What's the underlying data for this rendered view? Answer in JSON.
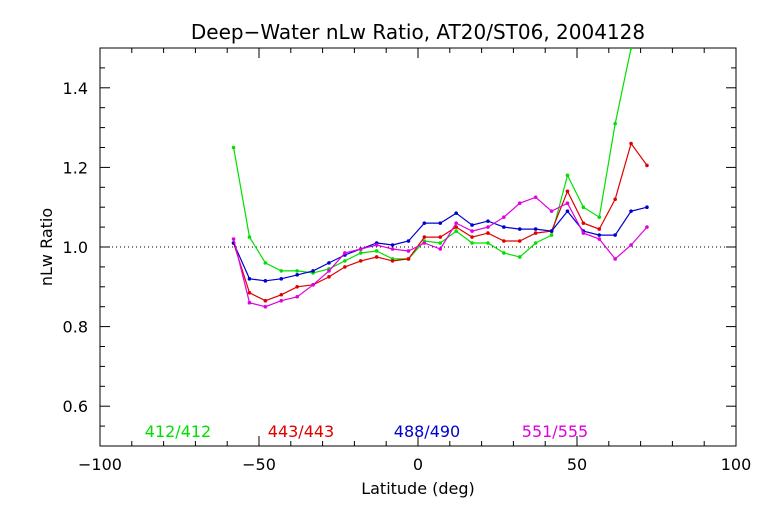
{
  "chart_data": {
    "type": "line",
    "title": "Deep−Water nLw Ratio, AT20/ST06, 2004128",
    "xlabel": "Latitude (deg)",
    "ylabel": "nLw Ratio",
    "xlim": [
      -100,
      100
    ],
    "ylim": [
      0.5,
      1.5
    ],
    "xticks": [
      -100,
      -50,
      0,
      50,
      100
    ],
    "xtick_labels": [
      "−100",
      "−50",
      "0",
      "50",
      "100"
    ],
    "yticks": [
      0.6,
      0.8,
      1.0,
      1.2,
      1.4
    ],
    "ytick_labels": [
      "0.6",
      "0.8",
      "1.0",
      "1.2",
      "1.4"
    ],
    "reference_line": 1.0,
    "grid": false,
    "legend_placement": "bottom, inside plot",
    "series": [
      {
        "name": "412/412",
        "color": "#00e000",
        "x": [
          -58,
          -53,
          -48,
          -43,
          -38,
          -33,
          -28,
          -23,
          -18,
          -13,
          -8,
          -3,
          2,
          7,
          12,
          17,
          22,
          27,
          32,
          37,
          42,
          47,
          52,
          57,
          62,
          67
        ],
        "y": [
          1.25,
          1.025,
          0.96,
          0.94,
          0.94,
          0.935,
          0.945,
          0.965,
          0.985,
          0.99,
          0.97,
          0.97,
          1.015,
          1.01,
          1.04,
          1.01,
          1.01,
          0.985,
          0.975,
          1.01,
          1.03,
          1.18,
          1.1,
          1.075,
          1.31,
          1.5
        ]
      },
      {
        "name": "443/443",
        "color": "#e00000",
        "x": [
          -58,
          -53,
          -48,
          -43,
          -38,
          -33,
          -28,
          -23,
          -18,
          -13,
          -8,
          -3,
          2,
          7,
          12,
          17,
          22,
          27,
          32,
          37,
          42,
          47,
          52,
          57,
          62,
          67,
          72
        ],
        "y": [
          1.01,
          0.885,
          0.865,
          0.88,
          0.9,
          0.905,
          0.925,
          0.95,
          0.965,
          0.975,
          0.965,
          0.97,
          1.025,
          1.025,
          1.05,
          1.025,
          1.035,
          1.015,
          1.015,
          1.035,
          1.04,
          1.14,
          1.06,
          1.045,
          1.12,
          1.26,
          1.205
        ]
      },
      {
        "name": "488/490",
        "color": "#0000d0",
        "x": [
          -58,
          -53,
          -48,
          -43,
          -38,
          -33,
          -28,
          -23,
          -18,
          -13,
          -8,
          -3,
          2,
          7,
          12,
          17,
          22,
          27,
          32,
          37,
          42,
          47,
          52,
          57,
          62,
          67,
          72
        ],
        "y": [
          1.01,
          0.92,
          0.915,
          0.92,
          0.93,
          0.94,
          0.96,
          0.98,
          0.995,
          1.01,
          1.005,
          1.015,
          1.06,
          1.06,
          1.085,
          1.055,
          1.065,
          1.05,
          1.045,
          1.045,
          1.04,
          1.09,
          1.04,
          1.03,
          1.03,
          1.09,
          1.1
        ]
      },
      {
        "name": "551/555",
        "color": "#e000e0",
        "x": [
          -58,
          -53,
          -48,
          -43,
          -38,
          -33,
          -28,
          -23,
          -18,
          -13,
          -8,
          -3,
          2,
          7,
          12,
          17,
          22,
          27,
          32,
          37,
          42,
          47,
          52,
          57,
          62,
          67,
          72
        ],
        "y": [
          1.02,
          0.86,
          0.85,
          0.865,
          0.875,
          0.905,
          0.94,
          0.985,
          0.995,
          1.005,
          0.995,
          0.99,
          1.01,
          0.995,
          1.06,
          1.04,
          1.05,
          1.075,
          1.11,
          1.125,
          1.09,
          1.11,
          1.035,
          1.02,
          0.97,
          1.005,
          1.05
        ]
      }
    ]
  }
}
